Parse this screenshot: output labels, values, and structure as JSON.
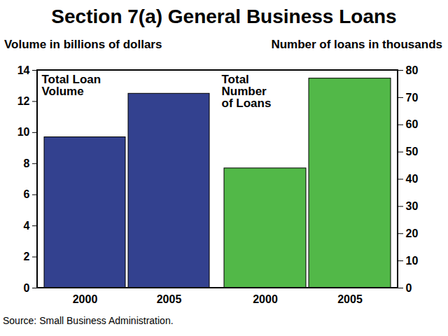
{
  "chart_data": {
    "type": "bar",
    "title": "Section 7(a) General Business Loans",
    "y_label": "Volume in billions of dollars",
    "y2_label": "Number of loans in thousands",
    "categories": [
      "2000",
      "2005"
    ],
    "series": [
      {
        "name": "Total Loan\nVolume",
        "color": "#33418f",
        "values": [
          9.7,
          12.5
        ]
      },
      {
        "name": "Total\nNumber\nof Loans",
        "color": "#52b848",
        "values": [
          44,
          77
        ],
        "axis": "y2"
      }
    ],
    "ylim": [
      0,
      14
    ],
    "yticks": [
      0,
      2,
      4,
      6,
      8,
      10,
      12,
      14
    ],
    "y2lim": [
      0,
      80
    ],
    "y2ticks": [
      0,
      10,
      20,
      30,
      40,
      50,
      60,
      70,
      80
    ],
    "grid": false,
    "source": "Source: Small Business Administration."
  }
}
